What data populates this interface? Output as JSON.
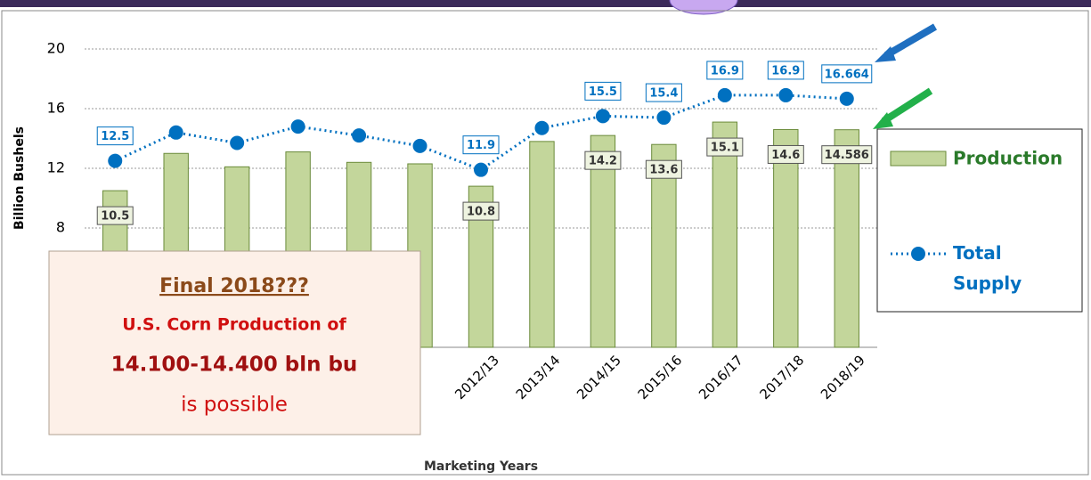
{
  "chart_data": {
    "type": "bar-line",
    "categories": [
      null,
      null,
      null,
      null,
      null,
      null,
      "2012/13",
      "2013/14",
      "2014/15",
      "2015/16",
      "2016/17",
      "2017/18",
      "2018/19"
    ],
    "series": [
      {
        "name": "Production",
        "type": "bar",
        "color": "#c3d69b",
        "values": [
          10.5,
          13.0,
          12.1,
          13.1,
          12.4,
          12.3,
          10.8,
          13.8,
          14.2,
          13.6,
          15.1,
          14.6,
          14.586
        ],
        "value_labels": [
          "10.5",
          null,
          null,
          null,
          null,
          null,
          "10.8",
          null,
          "14.2",
          "13.6",
          "15.1",
          "14.6",
          "14.586"
        ]
      },
      {
        "name": "Total Supply",
        "type": "line",
        "color": "#0070c0",
        "values": [
          12.5,
          14.4,
          13.7,
          14.8,
          14.2,
          13.5,
          11.9,
          14.7,
          15.5,
          15.4,
          16.9,
          16.9,
          16.664
        ],
        "value_labels": [
          "12.5",
          null,
          null,
          null,
          null,
          null,
          "11.9",
          null,
          "15.5",
          "15.4",
          "16.9",
          "16.9",
          "16.664"
        ]
      }
    ],
    "ylabel": "Billion Bushels",
    "xlabel": "Marketing Years",
    "ylim": [
      0,
      20
    ],
    "yticks": [
      8,
      12,
      16,
      20
    ],
    "grid": true,
    "annotation": [
      "Final 2018???",
      "U.S. Corn Production of",
      "14.100-14.400 bln bu",
      "is possible"
    ]
  }
}
